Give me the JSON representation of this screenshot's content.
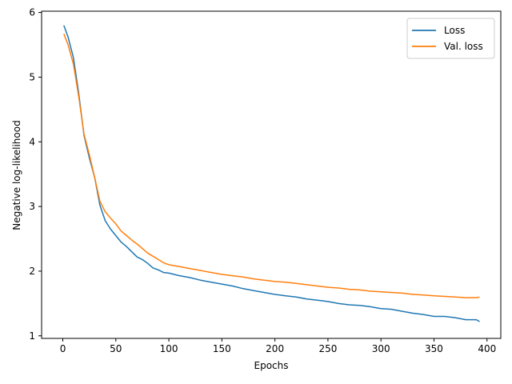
{
  "chart_data": {
    "type": "line",
    "title": "",
    "xlabel": "Epochs",
    "ylabel": "Negative log-likelihood",
    "xlim": [
      -20,
      413
    ],
    "ylim": [
      0.96,
      6.02
    ],
    "xticks": [
      0,
      50,
      100,
      150,
      200,
      250,
      300,
      350,
      400
    ],
    "yticks": [
      1,
      2,
      3,
      4,
      5,
      6
    ],
    "grid": false,
    "legend_position": "top-right",
    "series": [
      {
        "name": "Loss",
        "color": "#1f77b4",
        "x": [
          1,
          5,
          10,
          15,
          20,
          25,
          30,
          35,
          40,
          45,
          50,
          55,
          60,
          65,
          70,
          75,
          80,
          85,
          90,
          95,
          100,
          110,
          120,
          130,
          140,
          150,
          160,
          170,
          180,
          190,
          200,
          210,
          220,
          230,
          240,
          250,
          260,
          270,
          280,
          290,
          300,
          310,
          320,
          330,
          340,
          350,
          360,
          370,
          380,
          390,
          393
        ],
        "y": [
          5.8,
          5.62,
          5.3,
          4.75,
          4.1,
          3.75,
          3.45,
          3.02,
          2.78,
          2.65,
          2.55,
          2.45,
          2.38,
          2.3,
          2.22,
          2.18,
          2.12,
          2.05,
          2.02,
          1.98,
          1.97,
          1.93,
          1.9,
          1.86,
          1.83,
          1.8,
          1.77,
          1.73,
          1.7,
          1.67,
          1.64,
          1.62,
          1.6,
          1.57,
          1.55,
          1.53,
          1.5,
          1.48,
          1.47,
          1.45,
          1.42,
          1.41,
          1.38,
          1.35,
          1.33,
          1.3,
          1.3,
          1.28,
          1.25,
          1.25,
          1.22
        ]
      },
      {
        "name": "Val. loss",
        "color": "#ff7f0e",
        "x": [
          1,
          5,
          10,
          15,
          20,
          25,
          30,
          35,
          40,
          45,
          50,
          55,
          60,
          65,
          70,
          75,
          80,
          85,
          90,
          95,
          100,
          110,
          120,
          130,
          140,
          150,
          160,
          170,
          180,
          190,
          200,
          210,
          220,
          230,
          240,
          250,
          260,
          270,
          280,
          290,
          300,
          310,
          320,
          330,
          340,
          350,
          360,
          370,
          380,
          390,
          393
        ],
        "y": [
          5.67,
          5.5,
          5.2,
          4.7,
          4.12,
          3.8,
          3.45,
          3.08,
          2.92,
          2.82,
          2.73,
          2.62,
          2.55,
          2.48,
          2.42,
          2.35,
          2.28,
          2.23,
          2.18,
          2.13,
          2.1,
          2.07,
          2.04,
          2.01,
          1.98,
          1.95,
          1.93,
          1.91,
          1.88,
          1.86,
          1.84,
          1.83,
          1.81,
          1.79,
          1.77,
          1.75,
          1.74,
          1.72,
          1.71,
          1.69,
          1.68,
          1.67,
          1.66,
          1.64,
          1.63,
          1.62,
          1.61,
          1.6,
          1.59,
          1.59,
          1.6
        ]
      }
    ]
  }
}
